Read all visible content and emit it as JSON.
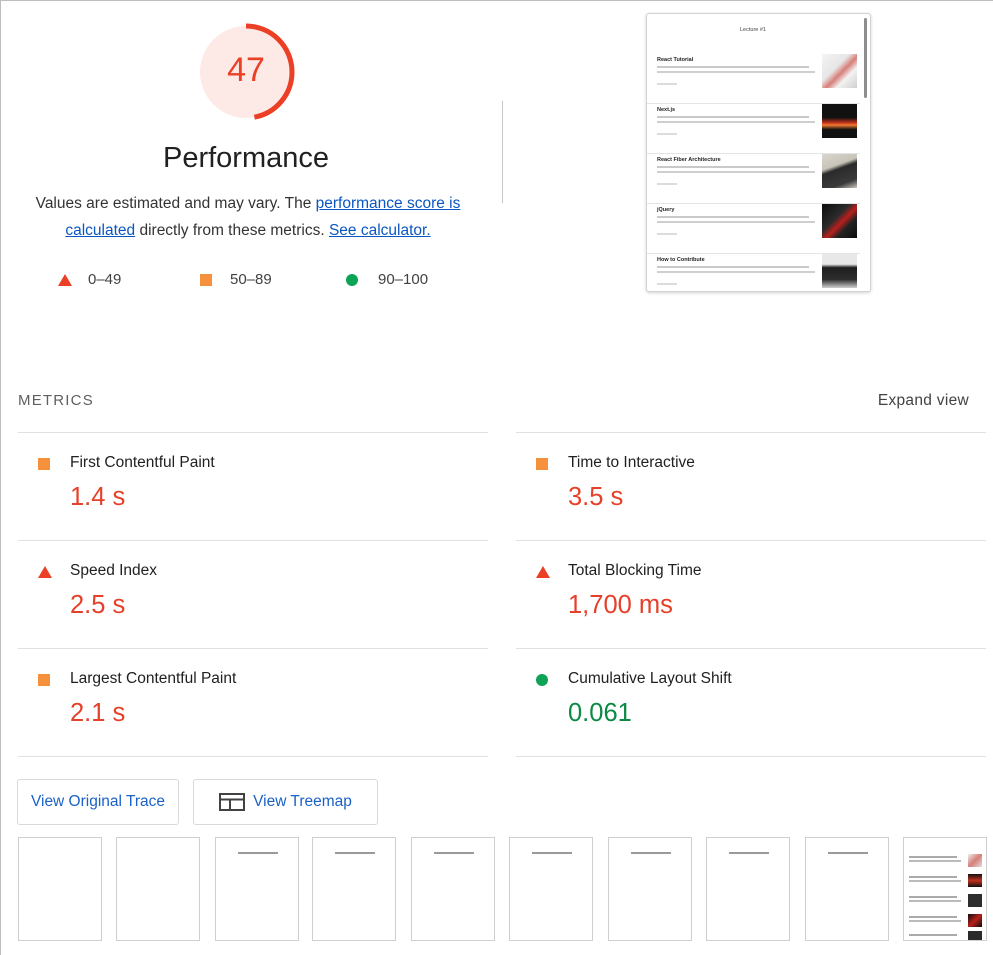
{
  "score": {
    "value": "47",
    "fraction": 0.47,
    "color": "#eb3f26",
    "track_color": "#fde9e6"
  },
  "title": "Performance",
  "description": {
    "prefix": "Values are estimated and may vary. The ",
    "link1": "performance score is calculated",
    "middle": " directly from these metrics. ",
    "link2": "See calculator."
  },
  "legend": [
    {
      "range": "0–49",
      "shape": "triangle",
      "color": "#eb3f26"
    },
    {
      "range": "50–89",
      "shape": "square",
      "color": "#f5913c"
    },
    {
      "range": "90–100",
      "shape": "circle",
      "color": "#0ca454"
    }
  ],
  "final_screenshot": {
    "header": "Lecture #1",
    "items": [
      "React Tutorial",
      "Next.js",
      "React Fiber Architecture",
      "jQuery",
      "How to Contribute"
    ]
  },
  "metrics": {
    "heading": "METRICS",
    "expand_label": "Expand view",
    "items": [
      {
        "label": "First Contentful Paint",
        "value": "1.4 s",
        "rating": "average"
      },
      {
        "label": "Time to Interactive",
        "value": "3.5 s",
        "rating": "average"
      },
      {
        "label": "Speed Index",
        "value": "2.5 s",
        "rating": "fail"
      },
      {
        "label": "Total Blocking Time",
        "value": "1,700 ms",
        "rating": "fail"
      },
      {
        "label": "Largest Contentful Paint",
        "value": "2.1 s",
        "rating": "average"
      },
      {
        "label": "Cumulative Layout Shift",
        "value": "0.061",
        "rating": "pass"
      }
    ]
  },
  "colors": {
    "fail": "#eb3f26",
    "average": "#f5913c",
    "pass": "#0ca454",
    "value_fail": "#e5402a",
    "value_pass": "#0c8a45"
  },
  "buttons": {
    "original_trace": "View Original Trace",
    "treemap": "View Treemap"
  },
  "filmstrip": {
    "frame_count": 10,
    "blank_frames": 2,
    "loaded_frames": 1
  }
}
